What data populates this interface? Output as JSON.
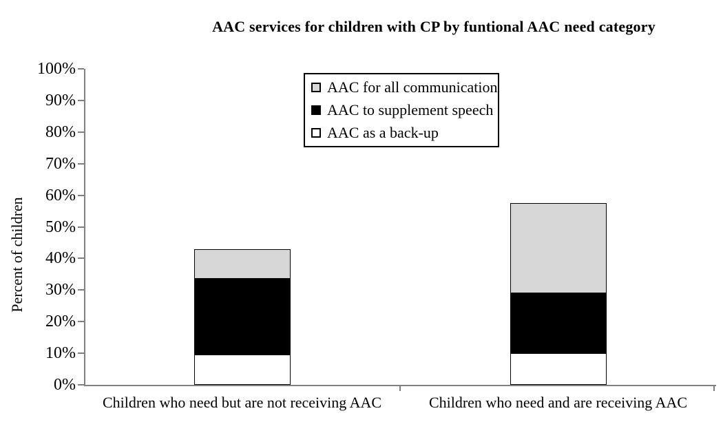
{
  "title": "AAC services for children with CP by funtional AAC need category",
  "chart_data": {
    "type": "bar",
    "stacked": true,
    "title": "AAC services for children with CP by funtional AAC need category",
    "categories": [
      "Children who need but are not receiving AAC",
      "Children who need and are receiving AAC"
    ],
    "series": [
      {
        "name": "AAC as a back-up",
        "color": "#ffffff",
        "values": [
          9.5,
          10
        ]
      },
      {
        "name": "AAC to supplement speech",
        "color": "#000000",
        "values": [
          24,
          19
        ]
      },
      {
        "name": "AAC for all communication",
        "color": "#d7d7d7",
        "values": [
          9.5,
          28.5
        ]
      }
    ],
    "bar_totals": [
      43,
      57.5
    ],
    "xlabel": "",
    "ylabel": "Percent of children",
    "ylim": [
      0,
      100
    ],
    "yticks": [
      "0%",
      "10%",
      "20%",
      "30%",
      "40%",
      "50%",
      "60%",
      "70%",
      "80%",
      "90%",
      "100%"
    ],
    "grid": false,
    "legend_position": "top-center-inside",
    "legend_order_top_to_bottom": [
      "AAC for all communication",
      "AAC to supplement speech",
      "AAC as a back-up"
    ]
  },
  "colors": {
    "axis": "#808080",
    "segment_border": "#000000",
    "legend_border": "#000000",
    "background": "#ffffff",
    "text": "#000000"
  }
}
